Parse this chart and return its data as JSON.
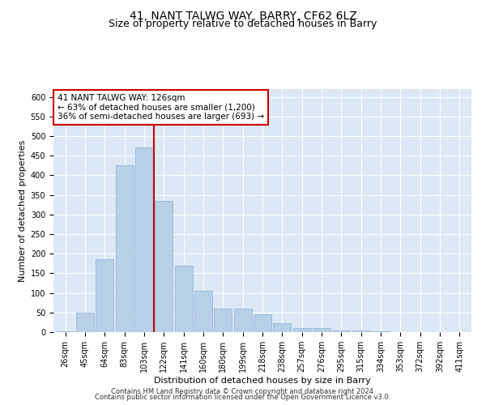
{
  "title1": "41, NANT TALWG WAY, BARRY, CF62 6LZ",
  "title2": "Size of property relative to detached houses in Barry",
  "xlabel": "Distribution of detached houses by size in Barry",
  "ylabel": "Number of detached properties",
  "categories": [
    "26sqm",
    "45sqm",
    "64sqm",
    "83sqm",
    "103sqm",
    "122sqm",
    "141sqm",
    "160sqm",
    "180sqm",
    "199sqm",
    "218sqm",
    "238sqm",
    "257sqm",
    "276sqm",
    "295sqm",
    "315sqm",
    "334sqm",
    "353sqm",
    "372sqm",
    "392sqm",
    "411sqm"
  ],
  "values": [
    3,
    50,
    185,
    425,
    472,
    335,
    170,
    105,
    60,
    60,
    45,
    22,
    10,
    11,
    5,
    4,
    2,
    1,
    1,
    1,
    1
  ],
  "bar_color": "#b8cfe8",
  "bar_edge_color": "#8aafd4",
  "vline_color": "#cc0000",
  "vline_x": 4.5,
  "annotation_text_line1": "41 NANT TALWG WAY: 126sqm",
  "annotation_text_line2": "← 63% of detached houses are smaller (1,200)",
  "annotation_text_line3": "36% of semi-detached houses are larger (693) →",
  "annotation_box_color": "#cc0000",
  "annotation_box_facecolor": "#ffffff",
  "ylim": [
    0,
    620
  ],
  "yticks": [
    0,
    50,
    100,
    150,
    200,
    250,
    300,
    350,
    400,
    450,
    500,
    550,
    600
  ],
  "bg_color": "#dce8f5",
  "fig_bg_color": "#ffffff",
  "grid_color": "#ffffff",
  "footnote_line1": "Contains HM Land Registry data © Crown copyright and database right 2024.",
  "footnote_line2": "Contains public sector information licensed under the Open Government Licence v3.0.",
  "title1_fontsize": 10,
  "title2_fontsize": 9,
  "xlabel_fontsize": 8,
  "ylabel_fontsize": 8,
  "tick_fontsize": 7,
  "annotation_fontsize": 7.5,
  "footnote_fontsize": 6
}
